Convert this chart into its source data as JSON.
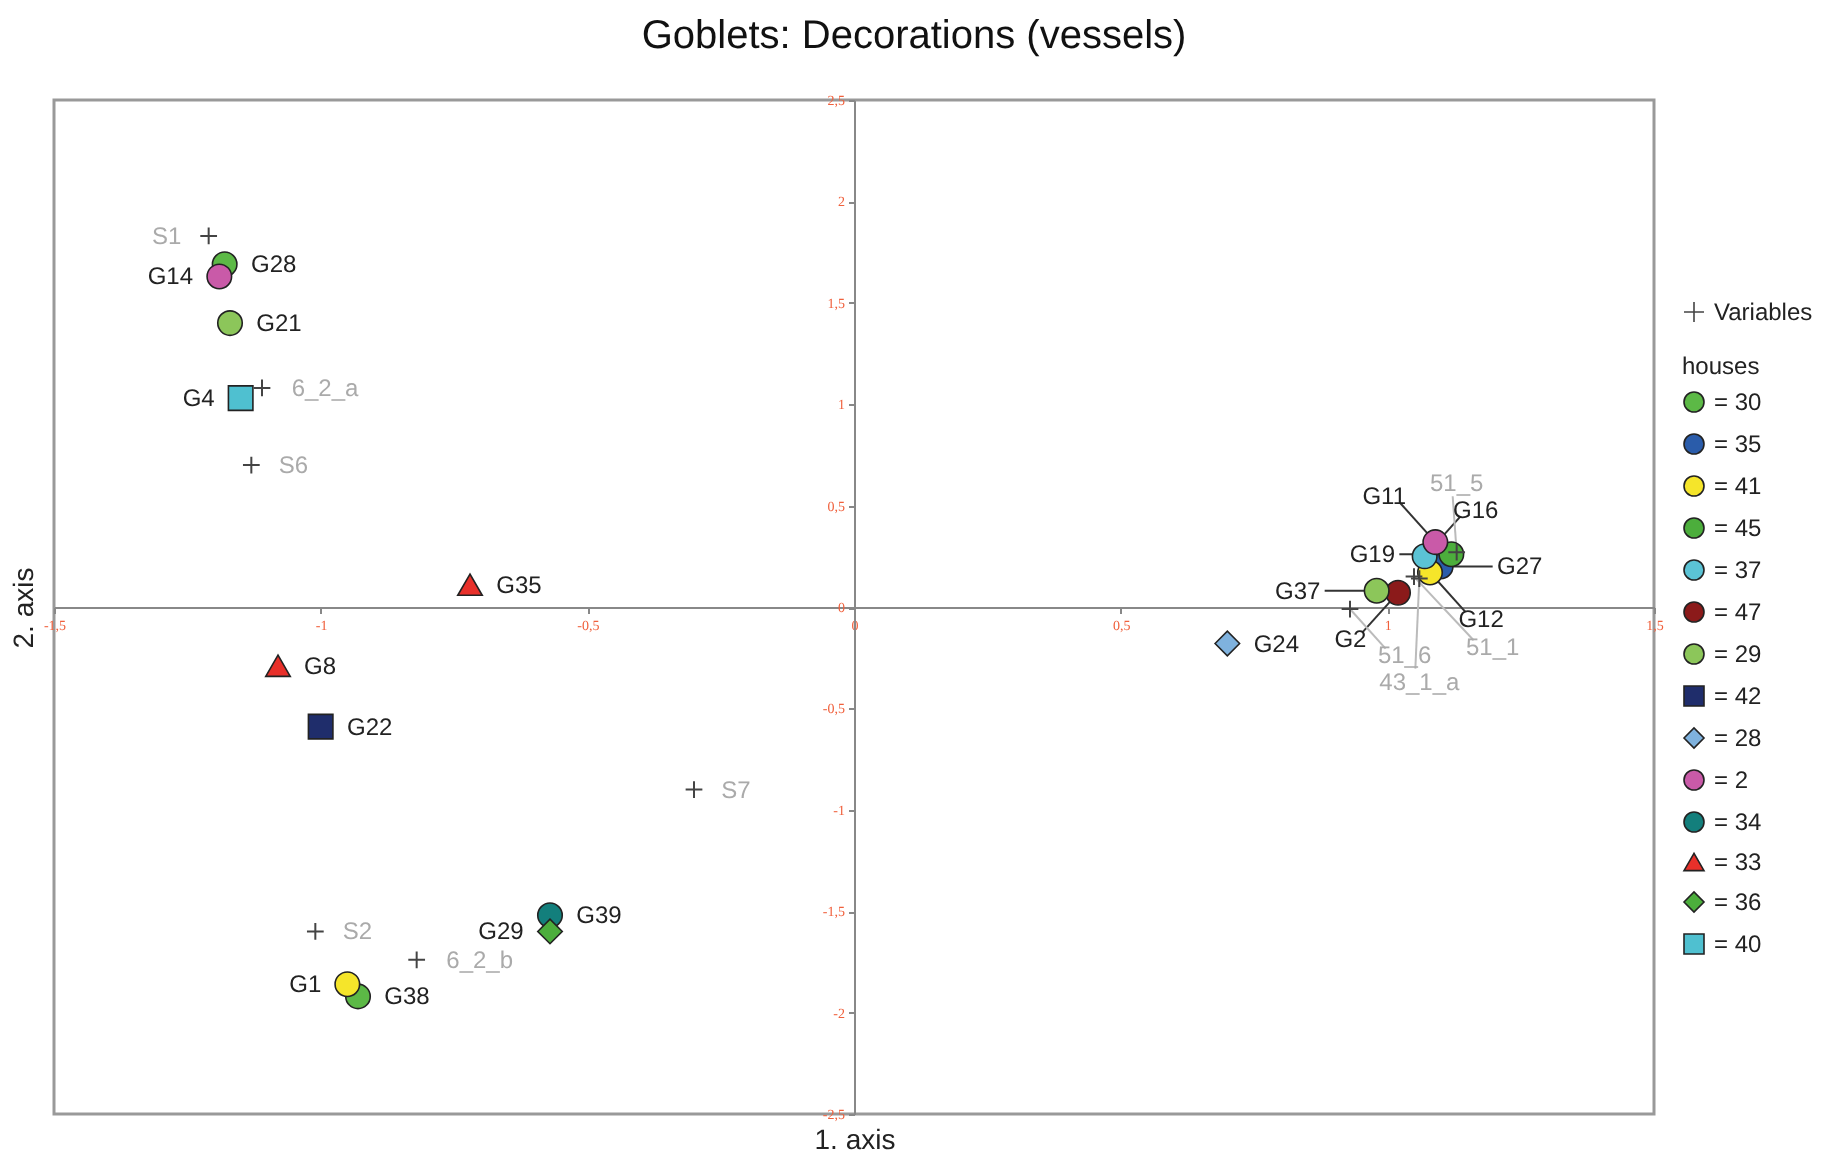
{
  "chart_data": {
    "type": "scatter",
    "title": "Goblets: Decorations (vessels)",
    "xlabel": "1. axis",
    "ylabel": "2. axis",
    "legend_title": "houses",
    "legend": "right",
    "grid": false,
    "xlim": [
      -1.5,
      1.5
    ],
    "ylim": [
      -2.5,
      2.5
    ],
    "xticks": [
      {
        "value": -1.5,
        "label": "-1,5"
      },
      -1,
      {
        "value": -0.5,
        "label": "-0,5"
      },
      0,
      {
        "value": 0.5,
        "label": "0,5"
      },
      1,
      {
        "value": 1.5,
        "label": "1,5"
      }
    ],
    "yticks": [
      {
        "value": -2.5,
        "label": "-2,5"
      },
      -2,
      {
        "value": -1.5,
        "label": "-1,5"
      },
      -1,
      {
        "value": -0.5,
        "label": "-0,5"
      },
      0,
      {
        "value": 0.5,
        "label": "0,5"
      },
      1,
      {
        "value": 1.5,
        "label": "1,5"
      },
      2,
      {
        "value": 2.5,
        "label": "2,5"
      }
    ],
    "series": [
      {
        "name": "= 30",
        "color": "#5cb946",
        "marker": "circle",
        "x": [
          -1.18,
          -0.93
        ],
        "values": [
          1.69,
          -1.92
        ],
        "value_labels": [
          "G28",
          "G38"
        ]
      },
      {
        "name": "= 35",
        "color": "#2a5caa",
        "marker": "circle",
        "x": [
          1.1
        ],
        "values": [
          0.2
        ],
        "value_labels": [
          "G27"
        ]
      },
      {
        "name": "= 41",
        "color": "#f5e52a",
        "marker": "circle",
        "x": [
          -0.95,
          1.08
        ],
        "values": [
          -1.86,
          0.17
        ],
        "value_labels": [
          "G1",
          "G12"
        ]
      },
      {
        "name": "= 45",
        "color": "#4cae3c",
        "marker": "circle",
        "x": [
          1.12
        ],
        "values": [
          0.26
        ],
        "value_labels": [
          "G19"
        ]
      },
      {
        "name": "= 37",
        "color": "#5bc3d5",
        "marker": "circle",
        "x": [
          1.07
        ],
        "values": [
          0.25
        ],
        "value_labels": [
          "G16"
        ]
      },
      {
        "name": "= 47",
        "color": "#8b1a1a",
        "marker": "circle",
        "x": [
          1.02
        ],
        "values": [
          0.07
        ],
        "value_labels": [
          "G2"
        ]
      },
      {
        "name": "= 29",
        "color": "#8cc65a",
        "marker": "circle",
        "x": [
          -1.17,
          0.98
        ],
        "values": [
          1.4,
          0.08
        ],
        "value_labels": [
          "G21",
          "G37"
        ]
      },
      {
        "name": "= 42",
        "color": "#1f2d6b",
        "marker": "square",
        "x": [
          -1.0
        ],
        "values": [
          -0.59
        ],
        "value_labels": [
          "G22"
        ]
      },
      {
        "name": "= 28",
        "color": "#7fb2de",
        "marker": "diamond",
        "x": [
          0.7
        ],
        "values": [
          -0.18
        ],
        "value_labels": [
          "G24"
        ]
      },
      {
        "name": "= 2",
        "color": "#c95aa8",
        "marker": "circle",
        "x": [
          -1.19,
          1.09
        ],
        "values": [
          1.63,
          0.32
        ],
        "value_labels": [
          "G14",
          "G11"
        ]
      },
      {
        "name": "= 34",
        "color": "#137f7c",
        "marker": "circle",
        "x": [
          -0.57
        ],
        "values": [
          -1.52
        ],
        "value_labels": [
          "G39"
        ]
      },
      {
        "name": "= 33",
        "color": "#e8302a",
        "marker": "triangle",
        "x": [
          -1.08,
          -0.72
        ],
        "values": [
          -0.29,
          0.11
        ],
        "value_labels": [
          "G8",
          "G35"
        ]
      },
      {
        "name": "= 36",
        "color": "#4cae3c",
        "marker": "diamond",
        "x": [
          -0.57
        ],
        "values": [
          -1.6
        ],
        "value_labels": [
          "G29"
        ]
      },
      {
        "name": "= 40",
        "color": "#4fc0d0",
        "marker": "square",
        "x": [
          -1.15
        ],
        "values": [
          1.03
        ],
        "value_labels": [
          "G4"
        ]
      },
      {
        "name": "Variables",
        "color": "#444444",
        "marker": "cross",
        "x": [
          -1.21,
          -1.11,
          -1.13,
          -0.3,
          -1.01,
          -0.82,
          0.93,
          1.05,
          1.13,
          1.06
        ],
        "values": [
          1.83,
          1.08,
          0.7,
          -0.9,
          -1.6,
          -1.74,
          -0.01,
          0.15,
          0.27,
          0.14
        ],
        "value_labels": [
          "S1",
          "6_2_a",
          "S6",
          "S7",
          "S2",
          "6_2_b",
          "51_6",
          "51_1",
          "51_5",
          "43_1_a"
        ]
      }
    ]
  }
}
